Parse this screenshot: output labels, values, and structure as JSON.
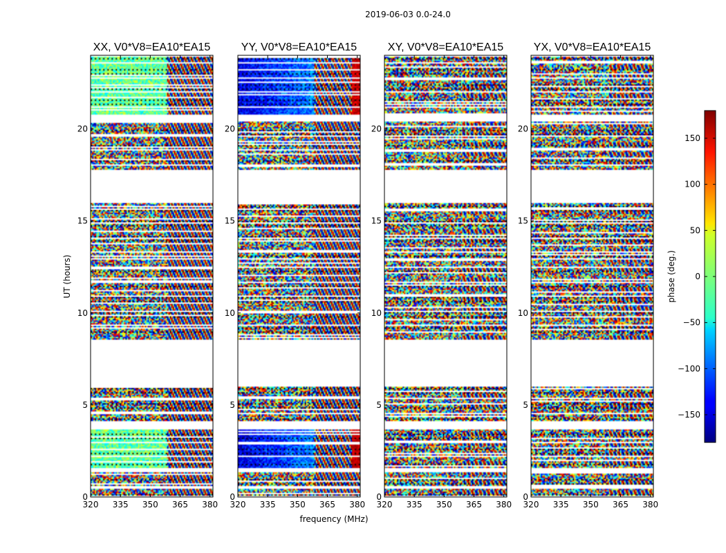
{
  "figure": {
    "suptitle": "2019-06-03 0.0-24.0",
    "xlabel": "frequency (MHz)",
    "ylabel": "UT (hours)"
  },
  "chart_data": {
    "type": "heatmap",
    "x_range": [
      320,
      381.5
    ],
    "y_range": [
      0,
      24
    ],
    "xticks": [
      320,
      335,
      350,
      365,
      380
    ],
    "yticks": [
      0,
      5,
      10,
      15,
      20
    ],
    "xlabel": "frequency (MHz)",
    "ylabel": "UT (hours)",
    "panels": [
      {
        "title": "XX, V0*V8=EA10*EA15",
        "pol": "XX"
      },
      {
        "title": "YY, V0*V8=EA10*EA15",
        "pol": "YY"
      },
      {
        "title": "XY, V0*V8=EA10*EA15",
        "pol": "XY"
      },
      {
        "title": "YX, V0*V8=EA10*EA15",
        "pol": "YX"
      }
    ],
    "data_segments_hours": [
      [
        0.1,
        0.45
      ],
      [
        0.55,
        1.4
      ],
      [
        1.6,
        3.7
      ],
      [
        4.1,
        6.0
      ],
      [
        8.5,
        12.9
      ],
      [
        13.0,
        16.0
      ],
      [
        17.8,
        20.5
      ],
      [
        20.8,
        23.9
      ]
    ],
    "colorbar": {
      "label": "phase (deg.)",
      "range": [
        -180,
        180
      ],
      "ticks": [
        -150,
        -100,
        -50,
        0,
        50,
        100,
        150
      ],
      "colormap": "jet"
    }
  }
}
